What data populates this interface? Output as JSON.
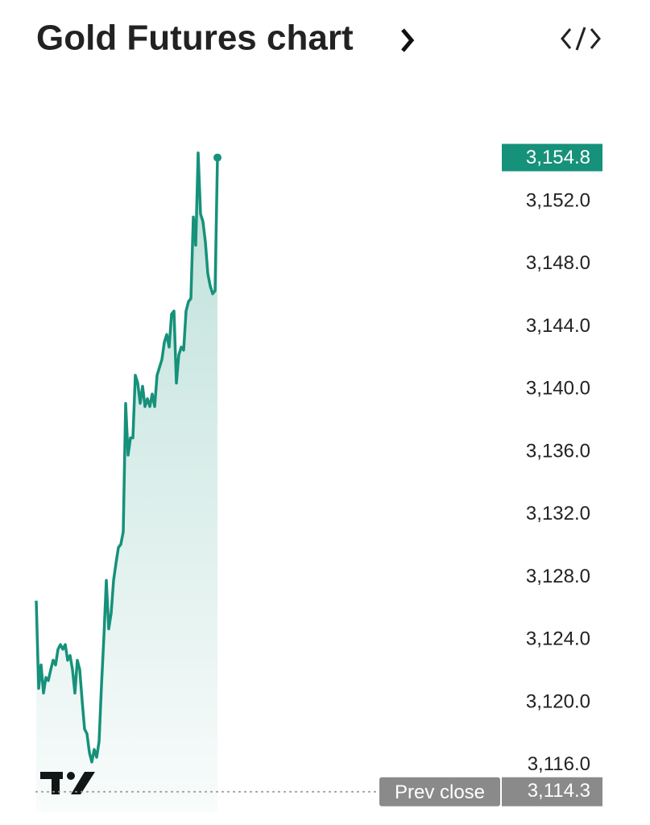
{
  "chart_data": {
    "type": "line",
    "title": "Gold Futures chart",
    "color": "#16917a",
    "values": [
      3126.5,
      3120.9,
      3122.4,
      3120.6,
      3121.6,
      3121.4,
      3122.1,
      3122.7,
      3122.4,
      3123.4,
      3123.7,
      3123.4,
      3123.7,
      3122.7,
      3123.0,
      3122.1,
      3120.6,
      3122.7,
      3122.1,
      3120.1,
      3118.3,
      3118.0,
      3116.8,
      3116.2,
      3117.0,
      3116.5,
      3117.5,
      3121.1,
      3124.2,
      3127.8,
      3124.7,
      3125.7,
      3127.8,
      3128.9,
      3129.9,
      3130.1,
      3130.9,
      3139.1,
      3135.8,
      3136.9,
      3136.9,
      3140.9,
      3140.4,
      3139.1,
      3140.2,
      3138.9,
      3139.4,
      3138.9,
      3139.7,
      3138.9,
      3140.9,
      3141.4,
      3141.9,
      3143.0,
      3143.5,
      3142.7,
      3144.8,
      3145.0,
      3140.4,
      3142.2,
      3142.7,
      3142.5,
      3145.0,
      3145.6,
      3145.8,
      3151.0,
      3149.2,
      3155.1,
      3151.2,
      3150.7,
      3149.4,
      3147.4,
      3146.6,
      3146.1,
      3146.3,
      3154.8
    ],
    "ylim": [
      3113,
      3160
    ],
    "yticks": [
      {
        "value": 3116,
        "label": "3,116.0"
      },
      {
        "value": 3120,
        "label": "3,120.0"
      },
      {
        "value": 3124,
        "label": "3,124.0"
      },
      {
        "value": 3128,
        "label": "3,128.0"
      },
      {
        "value": 3132,
        "label": "3,132.0"
      },
      {
        "value": 3136,
        "label": "3,136.0"
      },
      {
        "value": 3140,
        "label": "3,140.0"
      },
      {
        "value": 3144,
        "label": "3,144.0"
      },
      {
        "value": 3148,
        "label": "3,148.0"
      },
      {
        "value": 3152,
        "label": "3,152.0"
      }
    ],
    "last_price": {
      "value": 3154.8,
      "label": "3,154.8"
    },
    "prev_close": {
      "name": "Prev close",
      "value": 3114.3,
      "label": "3,114.3"
    }
  }
}
